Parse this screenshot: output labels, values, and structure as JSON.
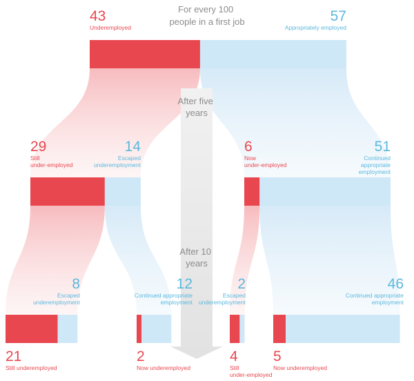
{
  "chart_data": {
    "type": "sankey",
    "title": "For every 100 people in a first job",
    "stage_labels": [
      "After five years",
      "After 10 years"
    ],
    "colors": {
      "under": "#e8474f",
      "appropriate": "#cfe8f7",
      "under_text": "#e8474f",
      "appropriate_text": "#5bb8dc",
      "flow_red": "#f7c3c5",
      "flow_blue": "#dcedf8",
      "arrow": "#e7e7e7",
      "header": "#8c8c8c"
    },
    "level0": {
      "under": {
        "value": 43,
        "label": "Underemployed"
      },
      "appropriate": {
        "value": 57,
        "label": "Appropriately employed"
      }
    },
    "level1": [
      {
        "parent": "under",
        "under": {
          "value": 29,
          "label": "Still under-employed"
        },
        "appropriate": {
          "value": 14,
          "label": "Escaped underemployment"
        }
      },
      {
        "parent": "appropriate",
        "under": {
          "value": 6,
          "label": "Now under-employed"
        },
        "appropriate": {
          "value": 51,
          "label": "Continued appropriate employment"
        }
      }
    ],
    "level2": [
      {
        "parent": "Still under-employed",
        "under": {
          "value": 21,
          "label": "Still underemployed"
        },
        "appropriate": {
          "value": 8,
          "label": "Escaped underemployment"
        }
      },
      {
        "parent": "Escaped underemployment",
        "under": {
          "value": 2,
          "label": "Now underemployed"
        },
        "appropriate": {
          "value": 12,
          "label": "Continued appropriate employment"
        }
      },
      {
        "parent": "Now under-employed",
        "under": {
          "value": 4,
          "label": "Still under-employed"
        },
        "appropriate": {
          "value": 2,
          "label": "Escaped underemployment"
        }
      },
      {
        "parent": "Continued appropriate employment",
        "under": {
          "value": 5,
          "label": "Now underemployed"
        },
        "appropriate": {
          "value": 46,
          "label": "Continued appropriate employment"
        }
      }
    ]
  }
}
